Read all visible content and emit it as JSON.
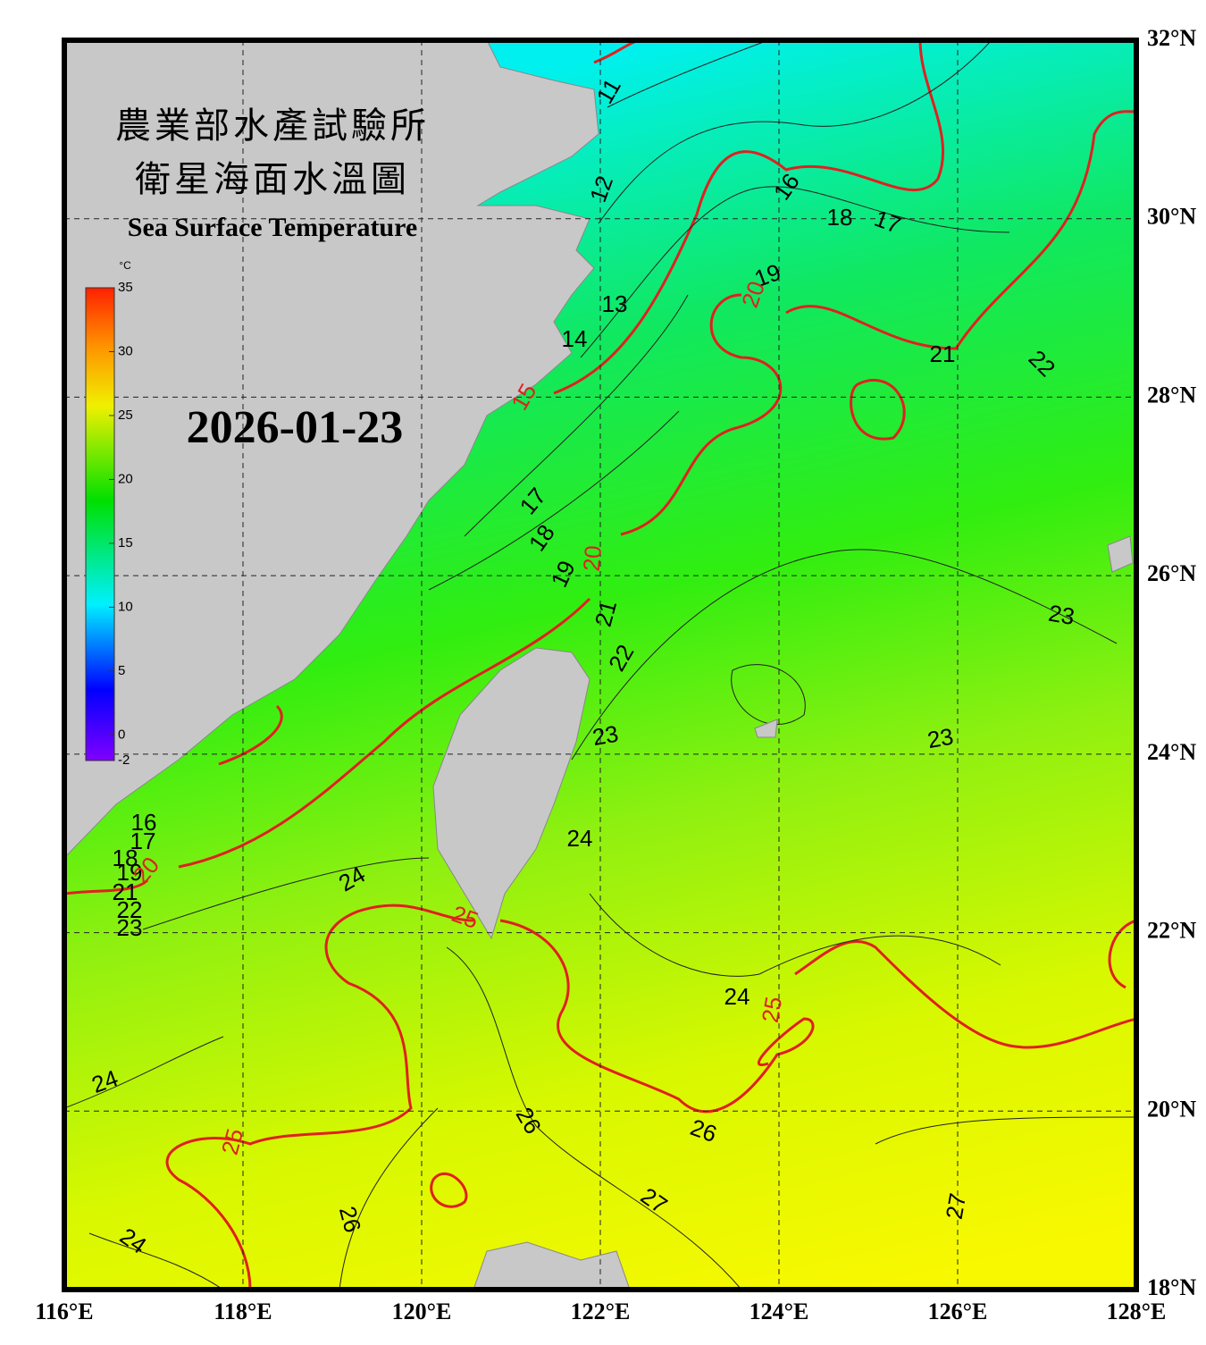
{
  "header": {
    "title_zh_1": "農業部水產試驗所",
    "title_zh_2": "衛星海面水溫圖",
    "title_en": "Sea Surface Temperature",
    "date": "2026-01-23"
  },
  "map": {
    "lon_range": [
      116,
      128
    ],
    "lat_range": [
      18,
      32
    ],
    "lon_ticks": [
      {
        "value": 116,
        "label": "116°E"
      },
      {
        "value": 118,
        "label": "118°E"
      },
      {
        "value": 120,
        "label": "120°E"
      },
      {
        "value": 122,
        "label": "122°E"
      },
      {
        "value": 124,
        "label": "124°E"
      },
      {
        "value": 126,
        "label": "126°E"
      },
      {
        "value": 128,
        "label": "128°E"
      }
    ],
    "lat_ticks": [
      {
        "value": 18,
        "label": "18°N"
      },
      {
        "value": 20,
        "label": "20°N"
      },
      {
        "value": 22,
        "label": "22°N"
      },
      {
        "value": 24,
        "label": "24°N"
      },
      {
        "value": 26,
        "label": "26°N"
      },
      {
        "value": 28,
        "label": "28°N"
      },
      {
        "value": 30,
        "label": "30°N"
      },
      {
        "value": 32,
        "label": "32°N"
      }
    ]
  },
  "colorbar": {
    "unit": "°C",
    "range": [
      -2,
      35
    ],
    "ticks": [
      35,
      30,
      25,
      20,
      15,
      10,
      5,
      0,
      -2
    ]
  },
  "isotherm_labels": [
    "11",
    "12",
    "13",
    "14",
    "16",
    "18",
    "17",
    "19",
    "21",
    "22",
    "17",
    "18",
    "19",
    "21",
    "22",
    "23",
    "23",
    "23",
    "24",
    "24",
    "16",
    "17",
    "18",
    "19",
    "21",
    "22",
    "23",
    "24",
    "24",
    "26",
    "26",
    "27",
    "27",
    "26",
    "24"
  ],
  "major_isotherm_labels": [
    "15",
    "20",
    "20",
    "25",
    "25",
    "25",
    "20"
  ]
}
